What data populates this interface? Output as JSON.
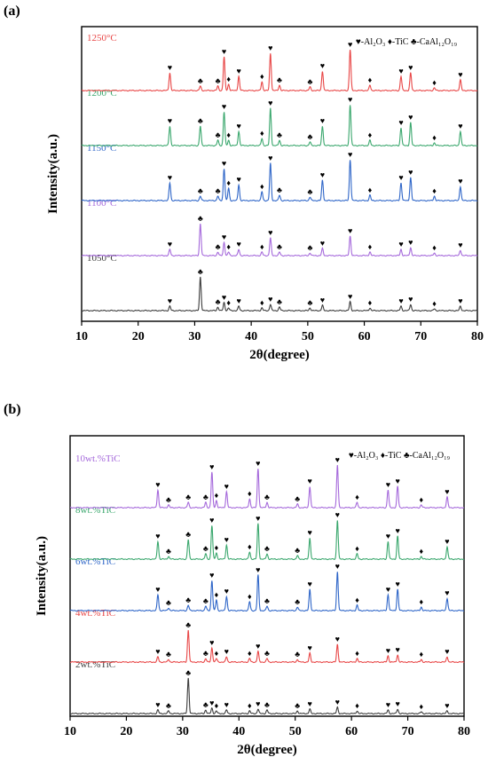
{
  "chart_data": [
    {
      "panel_label": "(a)",
      "type": "line",
      "xlabel": "2θ(degree)",
      "ylabel": "Intensity(a.u.)",
      "xlim": [
        10,
        80
      ],
      "xticks": [
        10,
        20,
        30,
        40,
        50,
        60,
        70,
        80
      ],
      "legend_text": "♥-Al₂O₃ ♦-TiC ♣-CaAl₁₂O₁₉",
      "peaks": {
        "Al2O3": [
          25.6,
          35.2,
          37.8,
          43.4,
          52.6,
          57.5,
          66.5,
          68.2,
          77.0
        ],
        "TiC": [
          36.0,
          41.9,
          61.0,
          72.4
        ],
        "CaAl12O19": [
          31.0,
          34.1,
          45.0,
          50.4
        ]
      },
      "series": [
        {
          "name": "1050°C",
          "color": "#3c3c3c",
          "intensity": {
            "Al2O3": [
              5,
              9,
              5,
              7,
              6,
              10,
              5,
              7,
              5
            ],
            "TiC": [
              3,
              3,
              3,
              2
            ],
            "CaAl12O19": [
              38,
              4,
              4,
              3
            ]
          }
        },
        {
          "name": "1100°C",
          "color": "#a569db",
          "intensity": {
            "Al2O3": [
              7,
              15,
              7,
              20,
              8,
              22,
              7,
              9,
              6
            ],
            "TiC": [
              4,
              4,
              4,
              3
            ],
            "CaAl12O19": [
              36,
              4,
              4,
              3
            ]
          }
        },
        {
          "name": "1150°C",
          "color": "#2f66c8",
          "intensity": {
            "Al2O3": [
              20,
              36,
              18,
              42,
              23,
              46,
              20,
              26,
              16
            ],
            "TiC": [
              14,
              10,
              6,
              5
            ],
            "CaAl12O19": [
              5,
              5,
              6,
              4
            ]
          }
        },
        {
          "name": "1200°C",
          "color": "#3aa76d",
          "intensity": {
            "Al2O3": [
              22,
              38,
              16,
              42,
              22,
              46,
              20,
              26,
              16
            ],
            "TiC": [
              6,
              8,
              6,
              3
            ],
            "CaAl12O19": [
              22,
              6,
              6,
              4
            ]
          }
        },
        {
          "name": "1250°C",
          "color": "#e84646",
          "intensity": {
            "Al2O3": [
              20,
              38,
              16,
              42,
              22,
              46,
              16,
              20,
              12
            ],
            "TiC": [
              7,
              10,
              6,
              3
            ],
            "CaAl12O19": [
              5,
              5,
              6,
              4
            ]
          }
        }
      ]
    },
    {
      "panel_label": "(b)",
      "type": "line",
      "xlabel": "2θ(degree)",
      "ylabel": "Intensity(a.u.)",
      "xlim": [
        10,
        80
      ],
      "xticks": [
        10,
        20,
        30,
        40,
        50,
        60,
        70,
        80
      ],
      "legend_text": "♥-Al₂O₃ ♦-TiC ♣-CaAl₁₂O₁₉",
      "peaks": {
        "Al2O3": [
          25.6,
          35.2,
          37.8,
          43.4,
          52.6,
          57.5,
          66.5,
          68.2,
          77.0
        ],
        "TiC": [
          36.0,
          41.9,
          61.0,
          72.4
        ],
        "CaAl12O19": [
          27.5,
          31.0,
          34.1,
          45.0,
          50.4
        ]
      },
      "series": [
        {
          "name": "2wt.%TiC",
          "color": "#3c3c3c",
          "intensity": {
            "Al2O3": [
              4,
              6,
              4,
              5,
              5,
              7,
              4,
              5,
              3
            ],
            "TiC": [
              3,
              3,
              3,
              2
            ],
            "CaAl12O19": [
              3,
              40,
              4,
              4,
              3
            ]
          }
        },
        {
          "name": "4wt.%TiC",
          "color": "#e84646",
          "intensity": {
            "Al2O3": [
              6,
              16,
              6,
              12,
              10,
              20,
              7,
              8,
              6
            ],
            "TiC": [
              4,
              4,
              4,
              3
            ],
            "CaAl12O19": [
              3,
              36,
              4,
              4,
              3
            ]
          }
        },
        {
          "name": "6wt.%TiC",
          "color": "#2f66c8",
          "intensity": {
            "Al2O3": [
              18,
              34,
              16,
              40,
              24,
              44,
              18,
              24,
              14
            ],
            "TiC": [
              12,
              10,
              6,
              4
            ],
            "CaAl12O19": [
              3,
              6,
              5,
              5,
              4
            ]
          }
        },
        {
          "name": "8wt.%TiC",
          "color": "#3aa76d",
          "intensity": {
            "Al2O3": [
              20,
              38,
              16,
              40,
              24,
              44,
              20,
              26,
              14
            ],
            "TiC": [
              7,
              8,
              6,
              3
            ],
            "CaAl12O19": [
              3,
              22,
              6,
              6,
              4
            ]
          }
        },
        {
          "name": "10wt.%TiC",
          "color": "#a569db",
          "intensity": {
            "Al2O3": [
              20,
              40,
              18,
              44,
              24,
              48,
              20,
              24,
              12
            ],
            "TiC": [
              8,
              10,
              6,
              3
            ],
            "CaAl12O19": [
              3,
              6,
              6,
              6,
              4
            ]
          }
        }
      ]
    }
  ]
}
